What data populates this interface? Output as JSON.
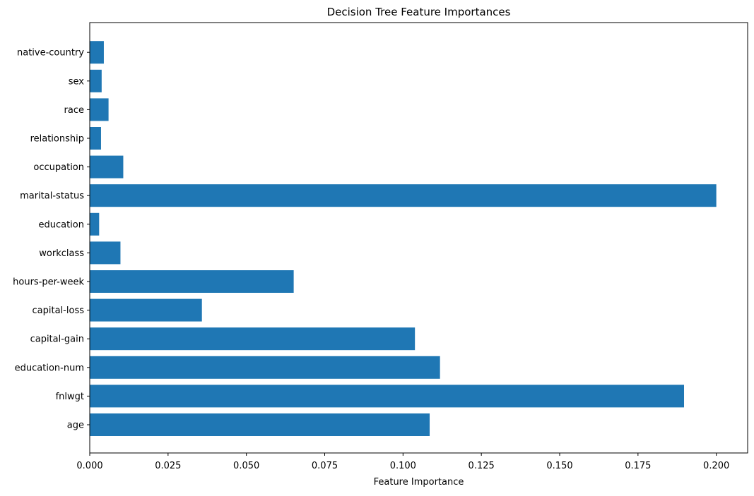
{
  "chart_data": {
    "type": "bar",
    "orientation": "horizontal",
    "title": "Decision Tree Feature Importances",
    "xlabel": "Feature Importance",
    "ylabel": "",
    "categories": [
      "age",
      "fnlwgt",
      "education-num",
      "capital-gain",
      "capital-loss",
      "hours-per-week",
      "workclass",
      "education",
      "marital-status",
      "occupation",
      "relationship",
      "race",
      "sex",
      "native-country"
    ],
    "values": [
      0.1085,
      0.1897,
      0.1118,
      0.1038,
      0.0358,
      0.0651,
      0.0098,
      0.003,
      0.2,
      0.0107,
      0.0036,
      0.006,
      0.0038,
      0.0045
    ],
    "xlim": [
      0.0,
      0.21
    ],
    "xticks": [
      "0.000",
      "0.025",
      "0.050",
      "0.075",
      "0.100",
      "0.125",
      "0.150",
      "0.175",
      "0.200"
    ],
    "bar_color": "#1f77b4",
    "grid": false,
    "legend": "none"
  }
}
